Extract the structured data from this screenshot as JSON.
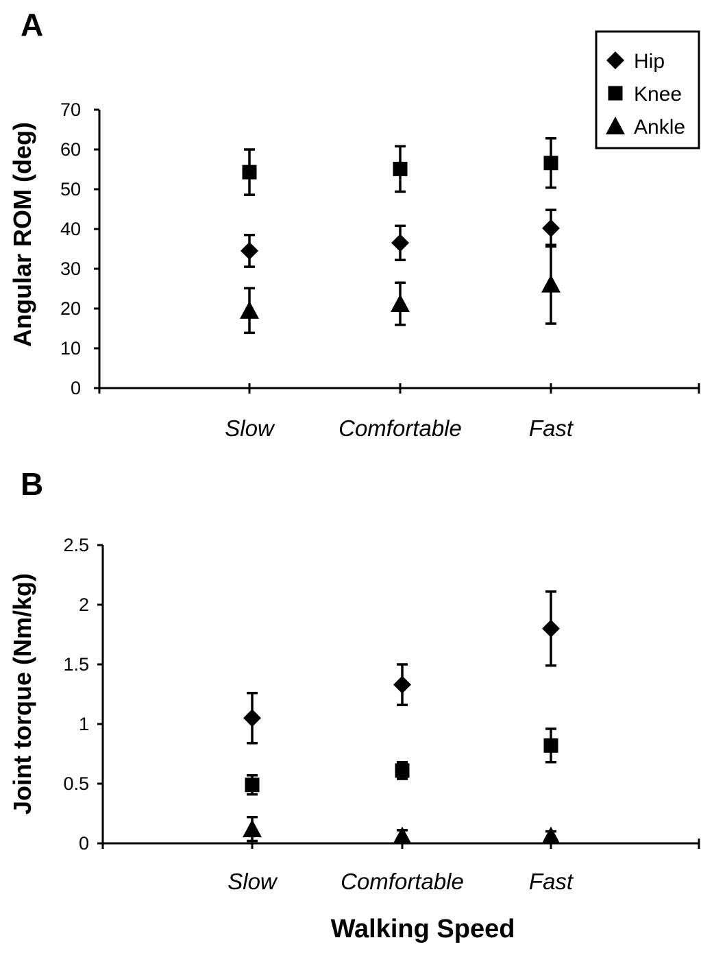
{
  "figure": {
    "xlabel": "Walking Speed",
    "legend": {
      "placement": "top-right",
      "entries": [
        {
          "name": "Hip",
          "marker": "diamond"
        },
        {
          "name": "Knee",
          "marker": "square"
        },
        {
          "name": "Ankle",
          "marker": "triangle"
        }
      ]
    }
  },
  "chart_data": [
    {
      "panel": "A",
      "type": "scatter",
      "error_bars": true,
      "categories": [
        "Slow",
        "Comfortable",
        "Fast"
      ],
      "ylabel": "Angular ROM (deg)",
      "ylim": [
        0,
        70
      ],
      "yticks": [
        0,
        10,
        20,
        30,
        40,
        50,
        60,
        70
      ],
      "ytick_labels": [
        "0",
        "10",
        "20",
        "30",
        "40",
        "50",
        "60",
        "70"
      ],
      "series": [
        {
          "name": "Hip",
          "marker": "diamond",
          "values": [
            34.5,
            36.5,
            40.2
          ],
          "errors": [
            4.0,
            4.3,
            4.6
          ]
        },
        {
          "name": "Knee",
          "marker": "square",
          "values": [
            54.3,
            55.1,
            56.6
          ],
          "errors": [
            5.7,
            5.7,
            6.2
          ]
        },
        {
          "name": "Ankle",
          "marker": "triangle",
          "values": [
            19.5,
            21.2,
            26.1
          ],
          "errors": [
            5.6,
            5.3,
            9.9
          ]
        }
      ]
    },
    {
      "panel": "B",
      "type": "scatter",
      "error_bars": true,
      "categories": [
        "Slow",
        "Comfortable",
        "Fast"
      ],
      "ylabel": "Joint torque (Nm/kg)",
      "ylim": [
        0,
        2.5
      ],
      "yticks": [
        0,
        0.5,
        1,
        1.5,
        2,
        2.5
      ],
      "ytick_labels": [
        "0",
        "0.5",
        "1",
        "1.5",
        "2",
        "2.5"
      ],
      "series": [
        {
          "name": "Hip",
          "marker": "diamond",
          "values": [
            1.05,
            1.33,
            1.8
          ],
          "errors": [
            0.21,
            0.17,
            0.31
          ]
        },
        {
          "name": "Knee",
          "marker": "square",
          "values": [
            0.49,
            0.61,
            0.82
          ],
          "errors": [
            0.08,
            0.07,
            0.14
          ]
        },
        {
          "name": "Ankle",
          "marker": "triangle",
          "values": [
            0.12,
            0.06,
            0.06
          ],
          "errors": [
            0.1,
            0.05,
            0.04
          ]
        }
      ]
    }
  ]
}
